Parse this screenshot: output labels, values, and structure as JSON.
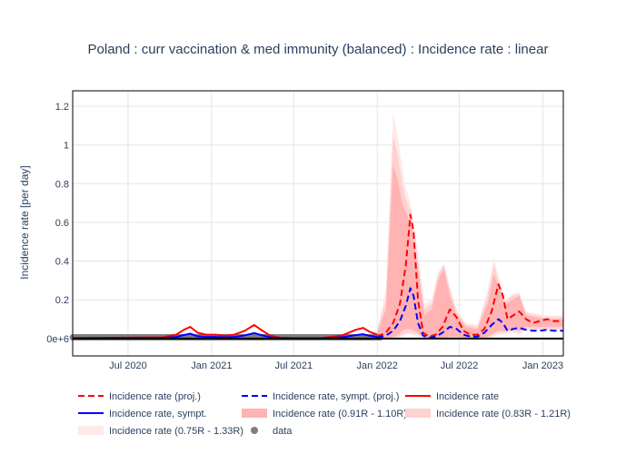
{
  "chart_data": {
    "type": "line",
    "title": "Poland : curr vaccination & med immunity (balanced) : Incidence rate : linear",
    "xlabel": "",
    "ylabel": "Incidence rate [per day]",
    "x_ticks": [
      {
        "date": "2020-07-01",
        "label": "Jul 2020"
      },
      {
        "date": "2021-01-01",
        "label": "Jan 2021"
      },
      {
        "date": "2021-07-01",
        "label": "Jul 2021"
      },
      {
        "date": "2022-01-01",
        "label": "Jan 2022"
      },
      {
        "date": "2022-07-01",
        "label": "Jul 2022"
      },
      {
        "date": "2023-01-01",
        "label": "Jan 2023"
      }
    ],
    "y_ticks": [
      {
        "value": 0,
        "label": "0e+6"
      },
      {
        "value": 0.2,
        "label": "0.2"
      },
      {
        "value": 0.4,
        "label": "0.4"
      },
      {
        "value": 0.6,
        "label": "0.6"
      },
      {
        "value": 0.8,
        "label": "0.8"
      },
      {
        "value": 1.0,
        "label": "1"
      },
      {
        "value": 1.2,
        "label": "1.2"
      }
    ],
    "xlim": [
      "2020-03-01",
      "2023-02-15"
    ],
    "ylim": [
      -0.09,
      1.28
    ],
    "grid": true,
    "legend_position": "bottom",
    "colors": {
      "projection": "#ff0000",
      "symptomatic": "#0000ff",
      "band_inner": "#ffb3b3",
      "band_mid": "#ffd1d1",
      "band_outer": "#ffe9e9",
      "data": "#7f7f7f"
    },
    "series": [
      {
        "name": "Incidence rate (proj.)",
        "style": "dashed",
        "color": "#ff0000",
        "x": [
          "2022-01-01",
          "2022-01-20",
          "2022-02-05",
          "2022-02-20",
          "2022-03-05",
          "2022-03-15",
          "2022-03-22",
          "2022-04-01",
          "2022-04-12",
          "2022-04-25",
          "2022-05-10",
          "2022-05-25",
          "2022-06-10",
          "2022-06-25",
          "2022-07-10",
          "2022-07-25",
          "2022-08-10",
          "2022-08-25",
          "2022-09-10",
          "2022-09-25",
          "2022-10-05",
          "2022-10-15",
          "2022-10-28",
          "2022-11-10",
          "2022-11-25",
          "2022-12-10",
          "2022-12-25",
          "2023-01-10",
          "2023-01-25",
          "2023-02-15"
        ],
        "y": [
          0.01,
          0.03,
          0.08,
          0.18,
          0.38,
          0.64,
          0.55,
          0.2,
          0.03,
          0.01,
          0.02,
          0.06,
          0.15,
          0.11,
          0.04,
          0.02,
          0.02,
          0.05,
          0.14,
          0.28,
          0.22,
          0.1,
          0.12,
          0.14,
          0.1,
          0.08,
          0.09,
          0.1,
          0.09,
          0.09
        ]
      },
      {
        "name": "Incidence rate, sympt. (proj.)",
        "style": "dashed",
        "color": "#0000ff",
        "x": [
          "2022-01-01",
          "2022-01-20",
          "2022-02-05",
          "2022-02-20",
          "2022-03-05",
          "2022-03-15",
          "2022-03-22",
          "2022-04-01",
          "2022-04-12",
          "2022-04-25",
          "2022-05-10",
          "2022-05-25",
          "2022-06-10",
          "2022-06-25",
          "2022-07-10",
          "2022-07-25",
          "2022-08-10",
          "2022-08-25",
          "2022-09-10",
          "2022-09-25",
          "2022-10-05",
          "2022-10-15",
          "2022-10-28",
          "2022-11-10",
          "2022-11-25",
          "2022-12-10",
          "2022-12-25",
          "2023-01-10",
          "2023-01-25",
          "2023-02-15"
        ],
        "y": [
          0.005,
          0.015,
          0.04,
          0.09,
          0.17,
          0.26,
          0.22,
          0.08,
          0.015,
          0.005,
          0.01,
          0.03,
          0.06,
          0.05,
          0.02,
          0.01,
          0.01,
          0.03,
          0.07,
          0.1,
          0.08,
          0.04,
          0.05,
          0.055,
          0.045,
          0.04,
          0.04,
          0.045,
          0.04,
          0.04
        ]
      },
      {
        "name": "Incidence rate",
        "style": "solid",
        "color": "#ff0000",
        "x": [
          "2020-03-01",
          "2020-06-01",
          "2020-09-15",
          "2020-10-15",
          "2020-11-01",
          "2020-11-15",
          "2020-12-01",
          "2020-12-20",
          "2021-01-10",
          "2021-02-01",
          "2021-02-20",
          "2021-03-15",
          "2021-04-05",
          "2021-04-20",
          "2021-05-10",
          "2021-06-01",
          "2021-07-01",
          "2021-09-01",
          "2021-10-15",
          "2021-11-15",
          "2021-12-01",
          "2021-12-15",
          "2022-01-01"
        ],
        "y": [
          0.003,
          0.004,
          0.006,
          0.02,
          0.045,
          0.06,
          0.03,
          0.02,
          0.02,
          0.015,
          0.02,
          0.04,
          0.07,
          0.045,
          0.015,
          0.004,
          0.002,
          0.003,
          0.015,
          0.045,
          0.055,
          0.035,
          0.02
        ]
      },
      {
        "name": "Incidence rate, sympt.",
        "style": "solid",
        "color": "#0000ff",
        "x": [
          "2020-03-01",
          "2020-06-01",
          "2020-09-15",
          "2020-10-15",
          "2020-11-01",
          "2020-11-15",
          "2020-12-01",
          "2020-12-20",
          "2021-01-10",
          "2021-02-01",
          "2021-02-20",
          "2021-03-15",
          "2021-04-05",
          "2021-04-20",
          "2021-05-10",
          "2021-06-01",
          "2021-07-01",
          "2021-09-01",
          "2021-10-15",
          "2021-11-15",
          "2021-12-01",
          "2021-12-15",
          "2022-01-01"
        ],
        "y": [
          0.001,
          0.002,
          0.003,
          0.008,
          0.018,
          0.025,
          0.012,
          0.008,
          0.008,
          0.006,
          0.008,
          0.016,
          0.028,
          0.018,
          0.006,
          0.002,
          0.001,
          0.001,
          0.006,
          0.018,
          0.022,
          0.014,
          0.008
        ]
      },
      {
        "name": "Incidence rate (0.91R - 1.10R)",
        "style": "band",
        "color": "#ffb3b3",
        "x": [
          "2022-01-01",
          "2022-01-20",
          "2022-02-05",
          "2022-02-15",
          "2022-02-25",
          "2022-03-05",
          "2022-03-15",
          "2022-04-01",
          "2022-04-15",
          "2022-05-01",
          "2022-05-15",
          "2022-05-28",
          "2022-06-10",
          "2022-06-25",
          "2022-07-15",
          "2022-08-10",
          "2022-09-01",
          "2022-09-15",
          "2022-09-25",
          "2022-10-10",
          "2022-10-25",
          "2022-11-10",
          "2022-11-25",
          "2022-12-15",
          "2023-01-10",
          "2023-02-15"
        ],
        "lower": [
          0.0,
          0.0,
          0.01,
          0.02,
          0.04,
          0.05,
          0.05,
          0.03,
          0.01,
          0.0,
          0.0,
          0.0,
          0.01,
          0.01,
          0.0,
          0.0,
          0.01,
          0.03,
          0.04,
          0.04,
          0.05,
          0.04,
          0.06,
          0.06,
          0.06,
          0.06
        ],
        "upper": [
          0.03,
          0.15,
          0.9,
          0.82,
          0.7,
          0.65,
          0.6,
          0.35,
          0.12,
          0.15,
          0.3,
          0.36,
          0.22,
          0.12,
          0.06,
          0.05,
          0.18,
          0.33,
          0.27,
          0.17,
          0.2,
          0.22,
          0.12,
          0.11,
          0.1,
          0.1
        ]
      },
      {
        "name": "Incidence rate (0.83R - 1.21R)",
        "style": "band",
        "color": "#ffd1d1",
        "x": [
          "2022-01-01",
          "2022-01-20",
          "2022-02-05",
          "2022-02-15",
          "2022-02-25",
          "2022-03-05",
          "2022-03-15",
          "2022-04-01",
          "2022-04-15",
          "2022-05-01",
          "2022-05-15",
          "2022-05-28",
          "2022-06-10",
          "2022-06-25",
          "2022-07-15",
          "2022-08-10",
          "2022-09-01",
          "2022-09-15",
          "2022-09-25",
          "2022-10-10",
          "2022-10-25",
          "2022-11-10",
          "2022-11-25",
          "2022-12-15",
          "2023-01-10",
          "2023-02-15"
        ],
        "lower": [
          0.0,
          0.0,
          0.0,
          0.01,
          0.02,
          0.03,
          0.03,
          0.02,
          0.005,
          0.0,
          0.0,
          0.0,
          0.005,
          0.005,
          0.0,
          0.0,
          0.005,
          0.02,
          0.03,
          0.03,
          0.04,
          0.03,
          0.05,
          0.05,
          0.05,
          0.05
        ],
        "upper": [
          0.04,
          0.2,
          1.05,
          0.95,
          0.8,
          0.72,
          0.66,
          0.4,
          0.15,
          0.18,
          0.33,
          0.38,
          0.25,
          0.14,
          0.07,
          0.06,
          0.22,
          0.38,
          0.3,
          0.19,
          0.22,
          0.23,
          0.13,
          0.12,
          0.11,
          0.11
        ]
      },
      {
        "name": "Incidence rate (0.75R - 1.33R)",
        "style": "band",
        "color": "#ffe9e9",
        "x": [
          "2022-01-01",
          "2022-01-20",
          "2022-02-05",
          "2022-02-15",
          "2022-02-25",
          "2022-03-05",
          "2022-03-15",
          "2022-04-01",
          "2022-04-15",
          "2022-05-01",
          "2022-05-15",
          "2022-05-28",
          "2022-06-10",
          "2022-06-25",
          "2022-07-15",
          "2022-08-10",
          "2022-09-01",
          "2022-09-15",
          "2022-09-25",
          "2022-10-10",
          "2022-10-25",
          "2022-11-10",
          "2022-11-25",
          "2022-12-15",
          "2023-01-10",
          "2023-02-15"
        ],
        "lower": [
          0.0,
          0.0,
          0.0,
          0.0,
          0.01,
          0.02,
          0.02,
          0.01,
          0.0,
          0.0,
          0.0,
          0.0,
          0.0,
          0.0,
          0.0,
          0.0,
          0.0,
          0.01,
          0.02,
          0.02,
          0.03,
          0.02,
          0.04,
          0.04,
          0.04,
          0.04
        ],
        "upper": [
          0.05,
          0.25,
          1.17,
          1.05,
          0.88,
          0.78,
          0.7,
          0.45,
          0.18,
          0.2,
          0.34,
          0.39,
          0.27,
          0.15,
          0.08,
          0.07,
          0.25,
          0.42,
          0.32,
          0.2,
          0.23,
          0.24,
          0.14,
          0.13,
          0.12,
          0.12
        ]
      },
      {
        "name": "data",
        "style": "markers",
        "color": "#7f7f7f",
        "x_start": "2020-03-01",
        "x_end": "2022-01-08",
        "step_days": 2,
        "y": [
          0.006
        ]
      }
    ]
  }
}
